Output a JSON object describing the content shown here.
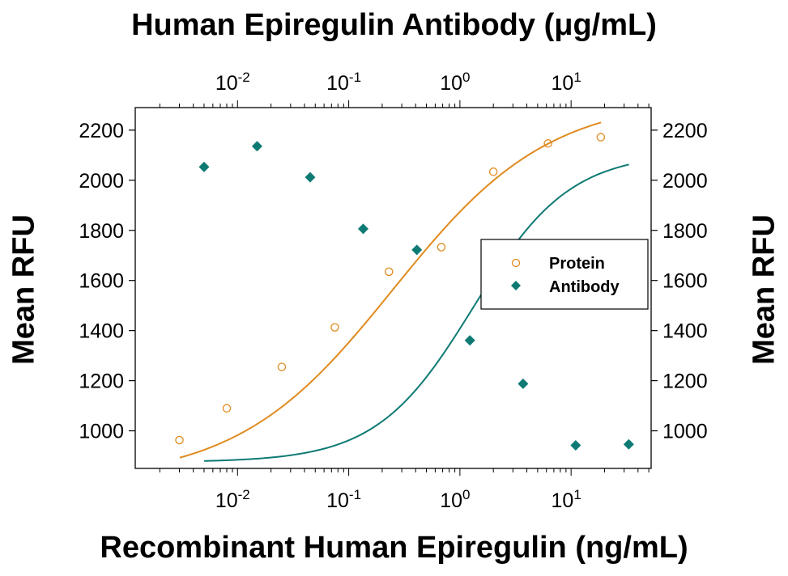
{
  "chart_data": {
    "type": "scatter",
    "title": "Human Epiregulin Antibody (μg/mL)",
    "xlabel": "Recombinant Human Epiregulin (ng/mL)",
    "ylabel": "Mean RFU",
    "x_scale": "log",
    "xlim_log10": [
      -2.92,
      1.72
    ],
    "ylim": [
      850,
      2290
    ],
    "yticks": [
      1000,
      1200,
      1400,
      1600,
      1800,
      2000,
      2200
    ],
    "ytick_labels": [
      "1000",
      "1200",
      "1400",
      "1600",
      "1800",
      "2000",
      "2200"
    ],
    "xticks_exponents": [
      "-2",
      "-1",
      "0",
      "1"
    ],
    "xtick_base": "10",
    "legend_position": "right",
    "grid": false,
    "colors": {
      "protein": "#e08a1e",
      "antibody": "#0e7a74"
    },
    "series": [
      {
        "name": "Protein",
        "marker": "open-circle",
        "x": [
          0.003,
          0.008,
          0.025,
          0.075,
          0.23,
          0.68,
          2.0,
          6.2,
          18.5
        ],
        "y": [
          963,
          1090,
          1255,
          1413,
          1635,
          1733,
          2034,
          2147,
          2172
        ]
      },
      {
        "name": "Antibody",
        "marker": "filled-diamond",
        "x": [
          0.005,
          0.015,
          0.045,
          0.135,
          0.41,
          1.23,
          3.7,
          11,
          33
        ],
        "y": [
          2053,
          2136,
          2012,
          1806,
          1722,
          1361,
          1188,
          942,
          946
        ]
      }
    ],
    "fit_curves": [
      {
        "name": "Protein",
        "bottom": 800,
        "top": 2330,
        "ec50_log10": -0.6,
        "hill": 0.62,
        "x_log10_range": [
          -2.52,
          1.27
        ]
      },
      {
        "name": "Antibody",
        "bottom": 875,
        "top": 2110,
        "ec50_log10": 0.12,
        "hill": 1.0,
        "x_log10_range": [
          -2.3,
          1.52
        ]
      }
    ]
  }
}
